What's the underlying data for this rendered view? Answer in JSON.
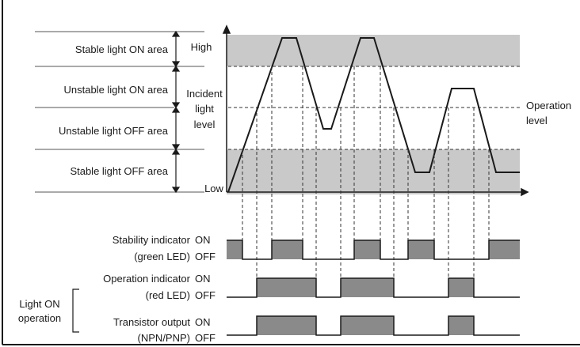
{
  "colors": {
    "band": "#c9c9c9",
    "signal_fill": "#8a8a8a",
    "line": "#1a1a1a",
    "dashed": "#333333"
  },
  "areas": {
    "stable_on": "Stable light ON area",
    "unstable_on": "Unstable light ON area",
    "unstable_off": "Unstable light OFF area",
    "stable_off": "Stable light OFF area"
  },
  "axis": {
    "high": "High",
    "low": "Low",
    "incident_line1": "Incident",
    "incident_line2": "light",
    "incident_line3": "level"
  },
  "operation_level": {
    "line1": "Operation",
    "line2": "level"
  },
  "signals": {
    "stability": {
      "line1": "Stability indicator",
      "line2": "(green LED)"
    },
    "operation": {
      "line1": "Operation indicator",
      "line2": "(red LED)"
    },
    "transistor": {
      "line1": "Transistor output",
      "line2": "(NPN/PNP)"
    },
    "on": "ON",
    "off": "OFF"
  },
  "group": {
    "line1": "Light ON",
    "line2": "operation"
  }
}
